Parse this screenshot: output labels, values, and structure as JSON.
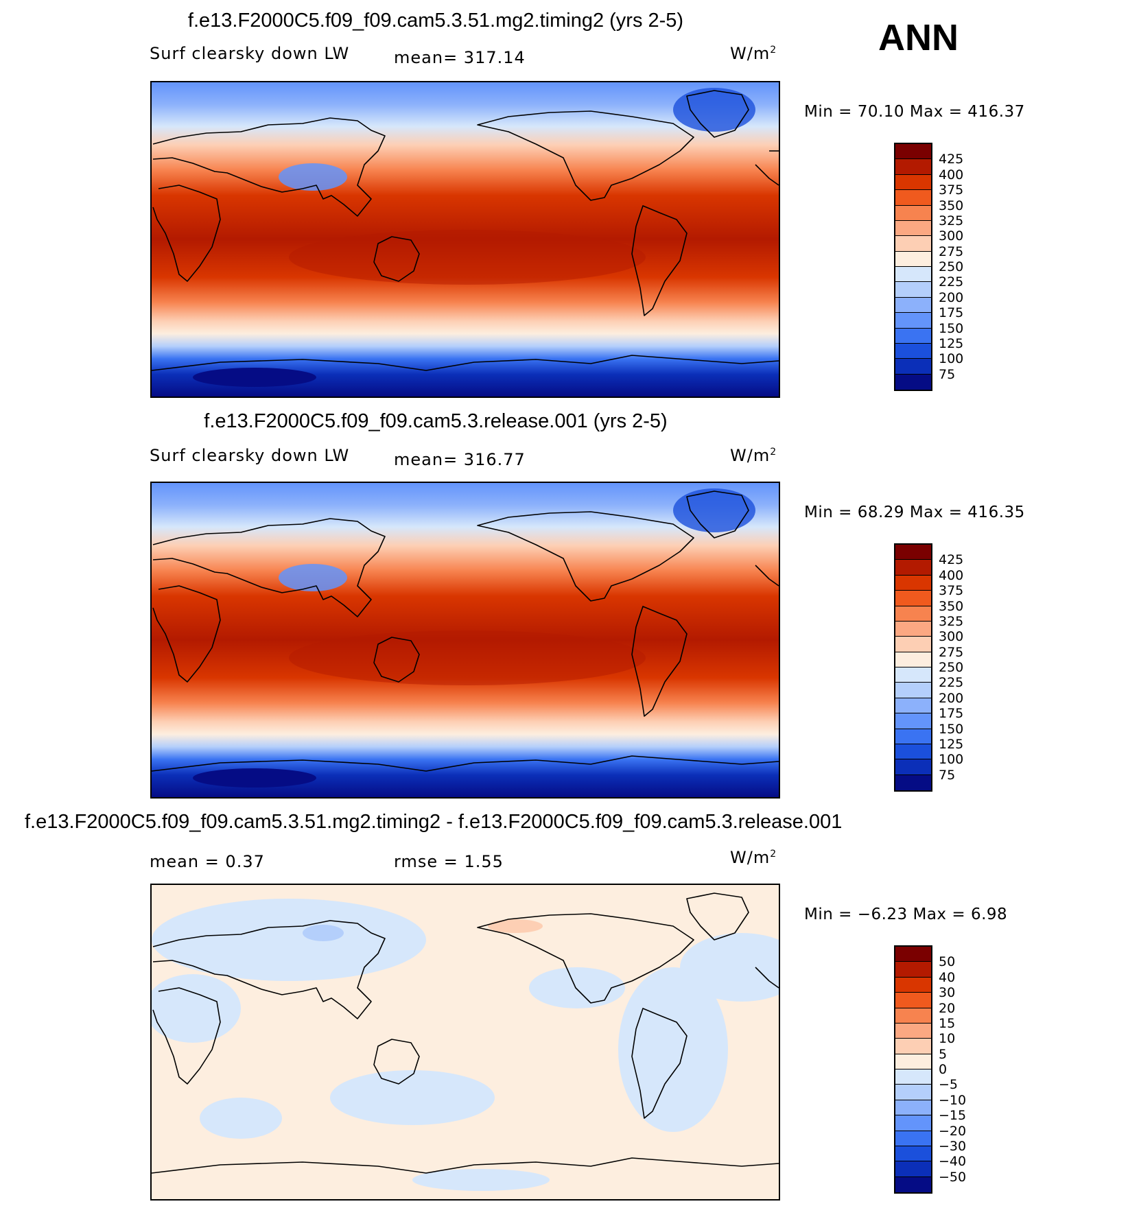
{
  "season": "ANN",
  "coastline_color": "#000000",
  "panels": [
    {
      "title": "f.e13.F2000C5.f09_f09.cam5.3.51.mg2.timing2 (yrs 2-5)",
      "variable": "Surf clearsky down LW",
      "mean": "mean= 317.14",
      "units_base": "W/m",
      "units_exp": "2",
      "minmax": "Min =   70.10 Max = 416.37",
      "colorbar": {
        "colors": [
          "#7a0000",
          "#b31a00",
          "#d93600",
          "#f05a1e",
          "#f7834f",
          "#fba882",
          "#fdcfb4",
          "#fdeedf",
          "#d6e7fb",
          "#b4cffb",
          "#8cb1fb",
          "#6394fb",
          "#3a73f2",
          "#1b50dc",
          "#0b2fb8",
          "#050c85"
        ],
        "labels": [
          "425",
          "400",
          "375",
          "350",
          "325",
          "300",
          "275",
          "250",
          "225",
          "200",
          "175",
          "150",
          "125",
          "100",
          "75"
        ]
      }
    },
    {
      "title": "f.e13.F2000C5.f09_f09.cam5.3.release.001 (yrs 2-5)",
      "variable": "Surf clearsky down LW",
      "mean": "mean= 316.77",
      "units_base": "W/m",
      "units_exp": "2",
      "minmax": "Min =   68.29 Max = 416.35",
      "colorbar": {
        "colors": [
          "#7a0000",
          "#b31a00",
          "#d93600",
          "#f05a1e",
          "#f7834f",
          "#fba882",
          "#fdcfb4",
          "#fdeedf",
          "#d6e7fb",
          "#b4cffb",
          "#8cb1fb",
          "#6394fb",
          "#3a73f2",
          "#1b50dc",
          "#0b2fb8",
          "#050c85"
        ],
        "labels": [
          "425",
          "400",
          "375",
          "350",
          "325",
          "300",
          "275",
          "250",
          "225",
          "200",
          "175",
          "150",
          "125",
          "100",
          "75"
        ]
      }
    },
    {
      "title": "f.e13.F2000C5.f09_f09.cam5.3.51.mg2.timing2 - f.e13.F2000C5.f09_f09.cam5.3.release.001",
      "variable": "mean =     0.37",
      "mean": "rmse =     1.55",
      "units_base": "W/m",
      "units_exp": "2",
      "minmax": "Min =  −6.23 Max =     6.98",
      "colorbar": {
        "colors": [
          "#7a0000",
          "#b31a00",
          "#d93600",
          "#f05a1e",
          "#f7834f",
          "#fba882",
          "#fdcfb4",
          "#fdeedf",
          "#d6e7fb",
          "#b4cffb",
          "#8cb1fb",
          "#6394fb",
          "#3a73f2",
          "#1b50dc",
          "#0b2fb8",
          "#050c85"
        ],
        "labels": [
          "50",
          "40",
          "30",
          "20",
          "15",
          "10",
          "5",
          "0",
          "−5",
          "−10",
          "−15",
          "−20",
          "−30",
          "−40",
          "−50"
        ]
      }
    }
  ]
}
